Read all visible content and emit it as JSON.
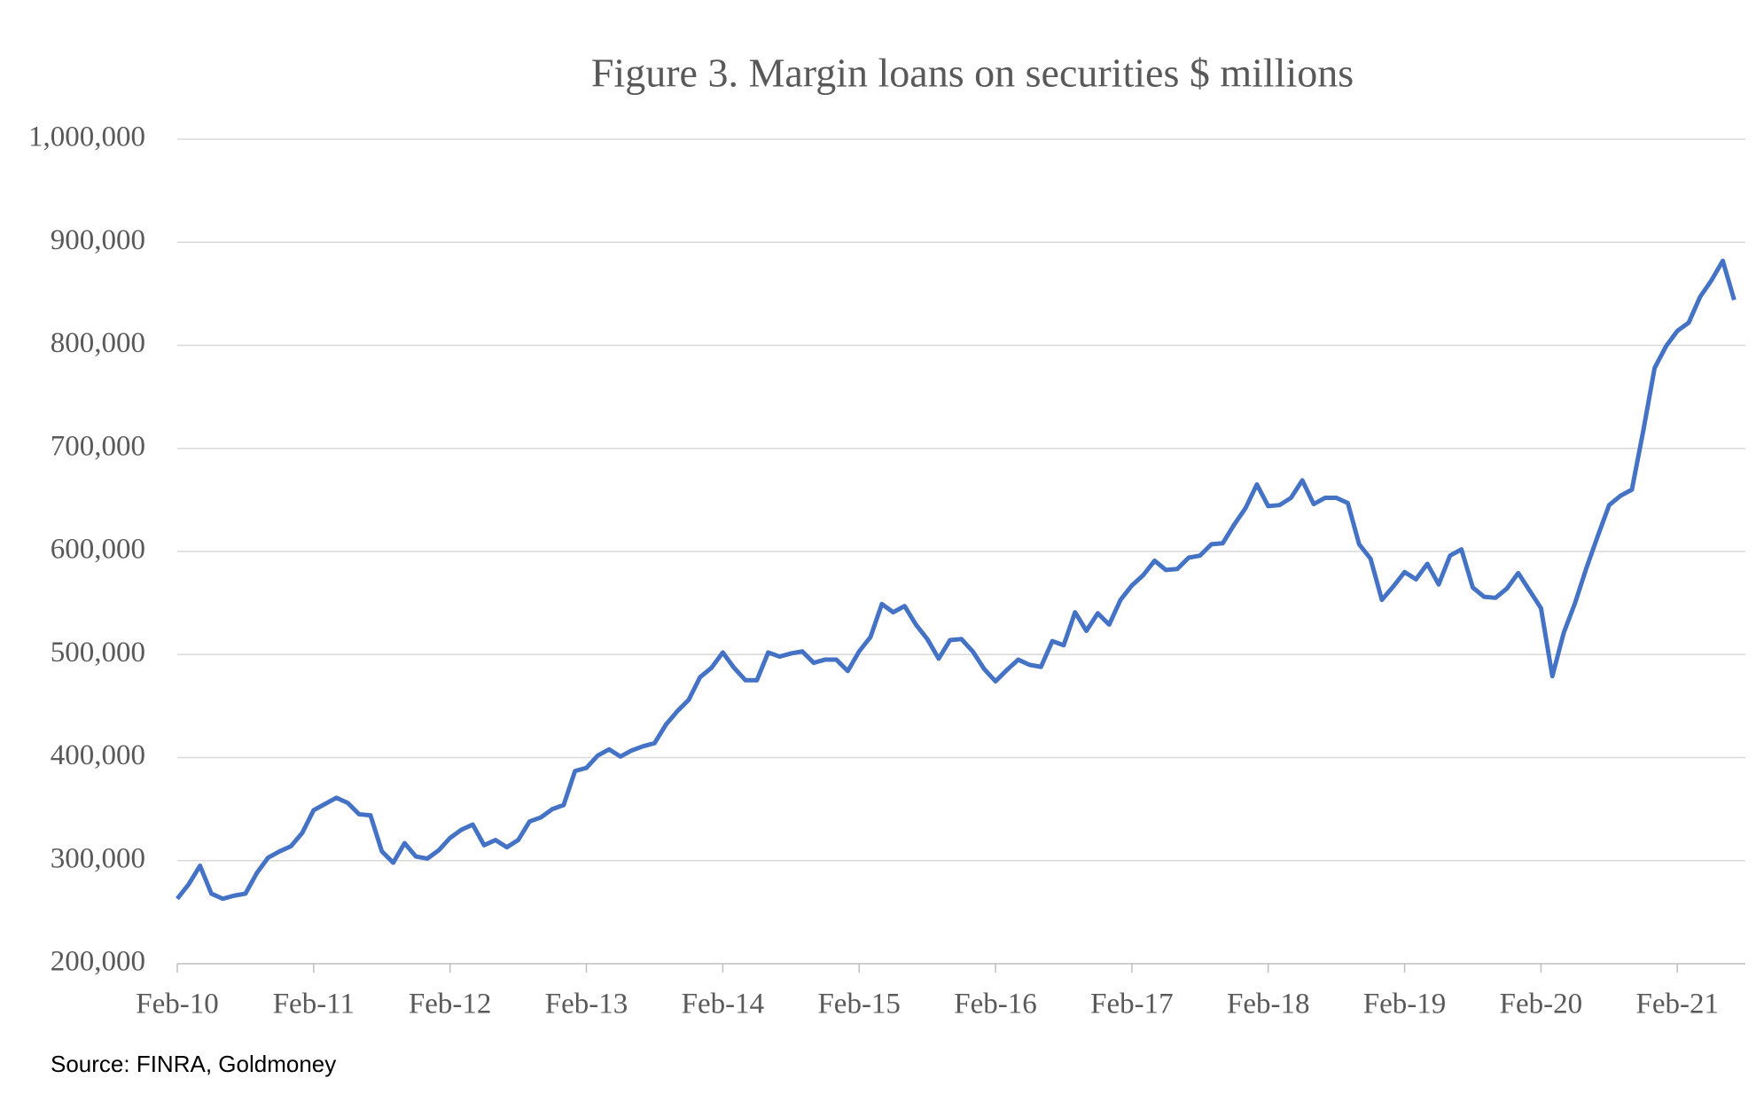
{
  "chart_data": {
    "type": "line",
    "title": "Figure 3. Margin loans on securities $ millions",
    "source": "Source: FINRA, Goldmoney",
    "categories": [
      "Feb-10",
      null,
      null,
      null,
      null,
      null,
      null,
      null,
      null,
      null,
      null,
      null,
      "Feb-11",
      null,
      null,
      null,
      null,
      null,
      null,
      null,
      null,
      null,
      null,
      null,
      "Feb-12",
      null,
      null,
      null,
      null,
      null,
      null,
      null,
      null,
      null,
      null,
      null,
      "Feb-13",
      null,
      null,
      null,
      null,
      null,
      null,
      null,
      null,
      null,
      null,
      null,
      "Feb-14",
      null,
      null,
      null,
      null,
      null,
      null,
      null,
      null,
      null,
      null,
      null,
      "Feb-15",
      null,
      null,
      null,
      null,
      null,
      null,
      null,
      null,
      null,
      null,
      null,
      "Feb-16",
      null,
      null,
      null,
      null,
      null,
      null,
      null,
      null,
      null,
      null,
      null,
      "Feb-17",
      null,
      null,
      null,
      null,
      null,
      null,
      null,
      null,
      null,
      null,
      null,
      "Feb-18",
      null,
      null,
      null,
      null,
      null,
      null,
      null,
      null,
      null,
      null,
      null,
      "Feb-19",
      null,
      null,
      null,
      null,
      null,
      null,
      null,
      null,
      null,
      null,
      null,
      "Feb-20",
      null,
      null,
      null,
      null,
      null,
      null,
      null,
      null,
      null,
      null,
      null,
      "Feb-21",
      null,
      null,
      null,
      null,
      null
    ],
    "series": [
      {
        "color": "#4472c4",
        "values": [
          263000,
          277000,
          295000,
          268000,
          263000,
          266000,
          268000,
          288000,
          303000,
          309000,
          314000,
          327000,
          349000,
          355000,
          361000,
          356000,
          345000,
          344000,
          309000,
          298000,
          317000,
          304000,
          302000,
          310000,
          322000,
          330000,
          335000,
          315000,
          320000,
          313000,
          320000,
          338000,
          342000,
          350000,
          354000,
          387000,
          390000,
          402000,
          408000,
          401000,
          407000,
          411000,
          414000,
          432000,
          445000,
          456000,
          478000,
          487000,
          502000,
          487000,
          475000,
          475000,
          502000,
          498000,
          501000,
          503000,
          492000,
          495000,
          495000,
          484000,
          503000,
          517000,
          549000,
          541000,
          547000,
          529000,
          515000,
          496000,
          514000,
          515000,
          503000,
          486000,
          474000,
          485000,
          495000,
          490000,
          488000,
          513000,
          509000,
          541000,
          523000,
          540000,
          529000,
          553000,
          567000,
          577000,
          591000,
          582000,
          583000,
          594000,
          596000,
          607000,
          608000,
          626000,
          642000,
          665000,
          644000,
          645000,
          652000,
          669000,
          646000,
          652000,
          652000,
          647000,
          607000,
          593000,
          553000,
          566000,
          580000,
          573000,
          588000,
          568000,
          596000,
          602000,
          565000,
          556000,
          555000,
          564000,
          579000,
          562000,
          545000,
          479000,
          521000,
          550000,
          584000,
          615000,
          645000,
          654000,
          660000,
          717000,
          778000,
          799000,
          814000,
          822000,
          847000,
          863000,
          882000,
          844000
        ]
      }
    ],
    "ylim": [
      200000,
      1000000
    ],
    "yticks": [
      {
        "value": 200000,
        "label": "200,000"
      },
      {
        "value": 300000,
        "label": "300,000"
      },
      {
        "value": 400000,
        "label": "400,000"
      },
      {
        "value": 500000,
        "label": "500,000"
      },
      {
        "value": 600000,
        "label": "600,000"
      },
      {
        "value": 700000,
        "label": "700,000"
      },
      {
        "value": 800000,
        "label": "800,000"
      },
      {
        "value": 900000,
        "label": "900,000"
      },
      {
        "value": 1000000,
        "label": "1,000,000"
      }
    ],
    "grid": true
  }
}
